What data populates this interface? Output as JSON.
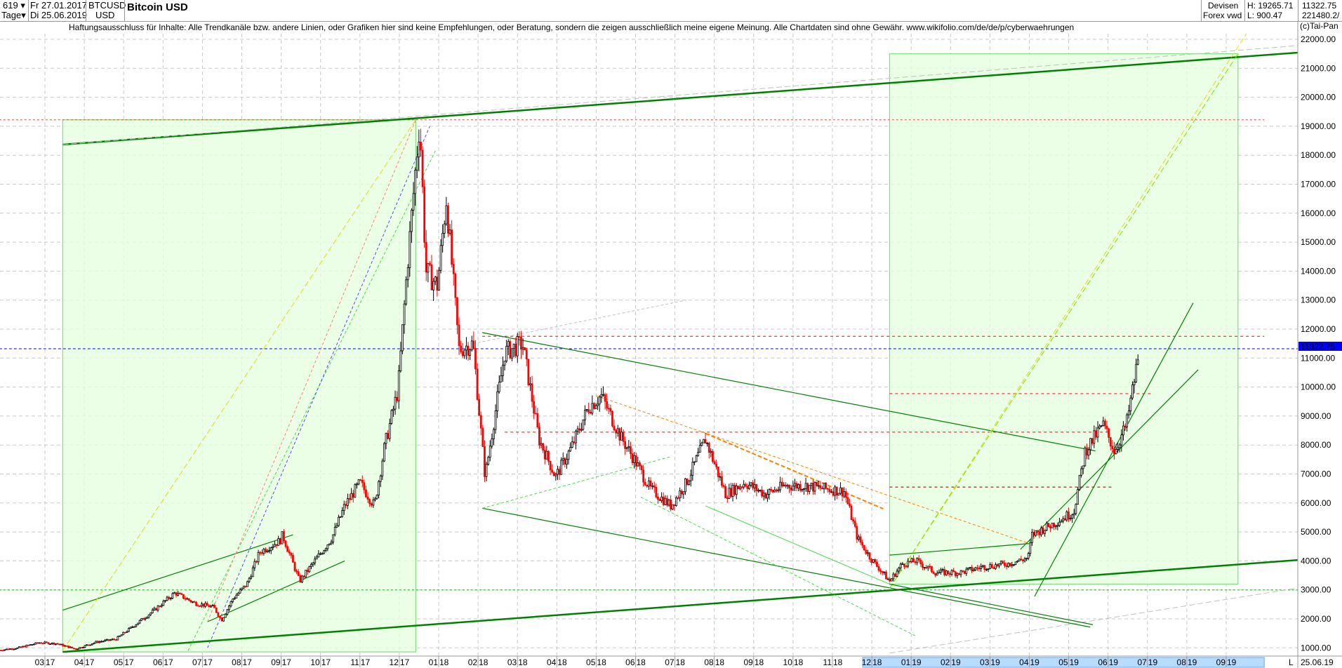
{
  "header": {
    "bars_count": "619",
    "period": "Tage",
    "date_from": "Fr 27.01.2017",
    "date_to": "Di 25.06.2019",
    "symbol": "BTCUSD",
    "currency": "USD",
    "title": "Bitcoin USD",
    "market": "Devisen",
    "market_sub": "Forex vwd",
    "high": "H: 19265.71",
    "low": "L: 900.47",
    "last": "11322.75",
    "volume": "221480.2/"
  },
  "disclaimer": "Haftungsausschluss für Inhalte: Alle Trendkanäle bzw. andere Linien, oder Grafiken hier sind keine Empfehlungen, oder Beratung, sondern die zeigen ausschließlich meine eigene Meinung. Alle Chartdaten sind ohne Gewähr.  www.wikifolio.com/de/de/p/cyberwaehrungen",
  "copyright": "(c)Tai-Pan",
  "footer": {
    "scroll_marker": "L",
    "end_date": "25.06.19"
  },
  "colors": {
    "up": "#000000",
    "down": "#ff0000",
    "current_price": "#0000ff",
    "trend": "#008000",
    "box": "#e6ffe0"
  },
  "chart_data": {
    "type": "candlestick",
    "title": "Bitcoin USD",
    "ylim": [
      700,
      22300
    ],
    "grid": true,
    "y_ticks": [
      "1000.00",
      "2000.00",
      "3000.00",
      "4000.00",
      "5000.00",
      "6000.00",
      "7000.00",
      "8000.00",
      "9000.00",
      "10000.00",
      "11000.00",
      "12000.00",
      "13000.00",
      "14000.00",
      "15000.00",
      "16000.00",
      "17000.00",
      "18000.00",
      "19000.00",
      "20000.00",
      "21000.00",
      "22000.00"
    ],
    "x_ticks": [
      {
        "m": "03",
        "y": "17",
        "date": "2017-03-01"
      },
      {
        "m": "04",
        "y": "17",
        "date": "2017-04-01"
      },
      {
        "m": "05",
        "y": "17",
        "date": "2017-05-01"
      },
      {
        "m": "06",
        "y": "17",
        "date": "2017-06-01"
      },
      {
        "m": "07",
        "y": "17",
        "date": "2017-07-01"
      },
      {
        "m": "08",
        "y": "17",
        "date": "2017-08-01"
      },
      {
        "m": "09",
        "y": "17",
        "date": "2017-09-01"
      },
      {
        "m": "10",
        "y": "17",
        "date": "2017-10-01"
      },
      {
        "m": "11",
        "y": "17",
        "date": "2017-11-01"
      },
      {
        "m": "12",
        "y": "17",
        "date": "2017-12-01"
      },
      {
        "m": "01",
        "y": "18",
        "date": "2018-01-01"
      },
      {
        "m": "02",
        "y": "18",
        "date": "2018-02-01"
      },
      {
        "m": "03",
        "y": "18",
        "date": "2018-03-01"
      },
      {
        "m": "04",
        "y": "18",
        "date": "2018-04-01"
      },
      {
        "m": "05",
        "y": "18",
        "date": "2018-05-01"
      },
      {
        "m": "06",
        "y": "18",
        "date": "2018-06-01"
      },
      {
        "m": "07",
        "y": "18",
        "date": "2018-07-01"
      },
      {
        "m": "08",
        "y": "18",
        "date": "2018-08-01"
      },
      {
        "m": "09",
        "y": "18",
        "date": "2018-09-01"
      },
      {
        "m": "10",
        "y": "18",
        "date": "2018-10-01"
      },
      {
        "m": "11",
        "y": "18",
        "date": "2018-11-01"
      },
      {
        "m": "12",
        "y": "18",
        "date": "2018-12-01"
      },
      {
        "m": "01",
        "y": "19",
        "date": "2019-01-01"
      },
      {
        "m": "02",
        "y": "19",
        "date": "2019-02-01"
      },
      {
        "m": "03",
        "y": "19",
        "date": "2019-03-01"
      },
      {
        "m": "04",
        "y": "19",
        "date": "2019-04-01"
      },
      {
        "m": "05",
        "y": "19",
        "date": "2019-05-01"
      },
      {
        "m": "06",
        "y": "19",
        "date": "2019-06-01"
      },
      {
        "m": "07",
        "y": "19",
        "date": "2019-07-01"
      },
      {
        "m": "08",
        "y": "19",
        "date": "2019-08-01"
      },
      {
        "m": "09",
        "y": "19",
        "date": "2019-09-01"
      }
    ],
    "current_price": 11322.75,
    "closes": [
      [
        "2017-01-27",
        920
      ],
      [
        "2017-02-10",
        1000
      ],
      [
        "2017-02-25",
        1180
      ],
      [
        "2017-03-10",
        1150
      ],
      [
        "2017-03-25",
        960
      ],
      [
        "2017-04-10",
        1200
      ],
      [
        "2017-04-25",
        1300
      ],
      [
        "2017-05-10",
        1800
      ],
      [
        "2017-05-25",
        2300
      ],
      [
        "2017-06-10",
        2900
      ],
      [
        "2017-06-25",
        2550
      ],
      [
        "2017-07-10",
        2400
      ],
      [
        "2017-07-16",
        1950
      ],
      [
        "2017-07-25",
        2700
      ],
      [
        "2017-08-05",
        3200
      ],
      [
        "2017-08-15",
        4300
      ],
      [
        "2017-08-31",
        4700
      ],
      [
        "2017-09-02",
        4900
      ],
      [
        "2017-09-15",
        3300
      ],
      [
        "2017-09-25",
        3900
      ],
      [
        "2017-10-10",
        4800
      ],
      [
        "2017-10-20",
        5900
      ],
      [
        "2017-11-01",
        6700
      ],
      [
        "2017-11-12",
        5900
      ],
      [
        "2017-11-20",
        8000
      ],
      [
        "2017-11-30",
        9900
      ],
      [
        "2017-12-07",
        14000
      ],
      [
        "2017-12-17",
        19200
      ],
      [
        "2017-12-22",
        14000
      ],
      [
        "2017-12-31",
        13500
      ],
      [
        "2018-01-07",
        16500
      ],
      [
        "2018-01-17",
        11300
      ],
      [
        "2018-01-28",
        11500
      ],
      [
        "2018-02-06",
        6900
      ],
      [
        "2018-02-20",
        11200
      ],
      [
        "2018-03-05",
        11500
      ],
      [
        "2018-03-18",
        8200
      ],
      [
        "2018-03-31",
        6900
      ],
      [
        "2018-04-12",
        7900
      ],
      [
        "2018-04-25",
        9300
      ],
      [
        "2018-05-05",
        9700
      ],
      [
        "2018-05-20",
        8300
      ],
      [
        "2018-05-31",
        7500
      ],
      [
        "2018-06-12",
        6500
      ],
      [
        "2018-06-28",
        5900
      ],
      [
        "2018-07-10",
        6700
      ],
      [
        "2018-07-25",
        8200
      ],
      [
        "2018-08-10",
        6300
      ],
      [
        "2018-08-25",
        6700
      ],
      [
        "2018-09-10",
        6300
      ],
      [
        "2018-09-25",
        6600
      ],
      [
        "2018-10-10",
        6600
      ],
      [
        "2018-10-25",
        6500
      ],
      [
        "2018-11-10",
        6400
      ],
      [
        "2018-11-20",
        4800
      ],
      [
        "2018-11-30",
        4100
      ],
      [
        "2018-12-15",
        3300
      ],
      [
        "2018-12-25",
        3900
      ],
      [
        "2019-01-05",
        4000
      ],
      [
        "2019-01-20",
        3600
      ],
      [
        "2019-02-08",
        3600
      ],
      [
        "2019-02-24",
        3800
      ],
      [
        "2019-03-15",
        3900
      ],
      [
        "2019-03-31",
        4100
      ],
      [
        "2019-04-03",
        4900
      ],
      [
        "2019-04-20",
        5300
      ],
      [
        "2019-05-05",
        5700
      ],
      [
        "2019-05-14",
        7800
      ],
      [
        "2019-05-28",
        8700
      ],
      [
        "2019-06-06",
        7800
      ],
      [
        "2019-06-15",
        8700
      ],
      [
        "2019-06-22",
        10500
      ],
      [
        "2019-06-25",
        11322.75
      ]
    ],
    "boxes": [
      {
        "from": "2017-03-15",
        "to": "2017-12-14",
        "low": 860,
        "high": 19223
      },
      {
        "from": "2018-12-15",
        "to": "2019-09-10",
        "low": 3200,
        "high": 21500
      }
    ],
    "lines": [
      {
        "p1": [
          "2017-03-15",
          18368
        ],
        "p2": [
          "2019-11-28",
          21650
        ],
        "color": "#008000",
        "width": 2.5,
        "dash": ""
      },
      {
        "p1": [
          "2017-03-15",
          860
        ],
        "p2": [
          "2019-11-28",
          4140
        ],
        "color": "#008000",
        "width": 2.5,
        "dash": ""
      },
      {
        "p1": [
          "2017-03-15",
          18368
        ],
        "p2": [
          "2019-11-28",
          21900
        ],
        "color": "#c0c0c0",
        "width": 1,
        "dash": "8 4"
      },
      {
        "p1": [
          "2018-12-15",
          820
        ],
        "p2": [
          "2019-11-28",
          3300
        ],
        "color": "#c0c0c0",
        "width": 1,
        "dash": "8 4"
      },
      {
        "p1": [
          "2018-02-04",
          11879
        ],
        "p2": [
          "2019-05-22",
          7796
        ],
        "color": "#008000",
        "width": 1.2,
        "dash": ""
      },
      {
        "p1": [
          "2018-02-04",
          5818
        ],
        "p2": [
          "2019-05-18",
          1715
        ],
        "color": "#008000",
        "width": 1.2,
        "dash": ""
      },
      {
        "p1": [
          "2019-04-05",
          2775
        ],
        "p2": [
          "2019-08-06",
          12904
        ],
        "color": "#008000",
        "width": 1.2,
        "dash": ""
      },
      {
        "p1": [
          "2019-03-25",
          4400
        ],
        "p2": [
          "2019-08-10",
          10600
        ],
        "color": "#008000",
        "width": 1.2,
        "dash": ""
      },
      {
        "p1": [
          "2018-12-15",
          4200
        ],
        "p2": [
          "2019-04-01",
          4600
        ],
        "color": "#008000",
        "width": 1.2,
        "dash": ""
      },
      {
        "p1": [
          "2017-03-15",
          2300
        ],
        "p2": [
          "2017-09-10",
          4900
        ],
        "color": "#008000",
        "width": 1.2,
        "dash": ""
      },
      {
        "p1": [
          "2017-07-05",
          1900
        ],
        "p2": [
          "2017-10-20",
          4000
        ],
        "color": "#008000",
        "width": 1.2,
        "dash": ""
      },
      {
        "p1": [
          "2017-03-15",
          900
        ],
        "p2": [
          "2017-12-14",
          19223
        ],
        "color": "#e0e000",
        "width": 1,
        "dash": "8 4"
      },
      {
        "p1": [
          "2018-12-15",
          3050
        ],
        "p2": [
          "2019-09-25",
          22800
        ],
        "color": "#e0e000",
        "width": 1,
        "dash": "8 4"
      },
      {
        "p1": [
          "2018-12-15",
          3050
        ],
        "p2": [
          "2019-09-10",
          21500
        ],
        "color": "#80e000",
        "width": 1,
        "dash": "8 4"
      },
      {
        "p1": [
          "2017-06-20",
          900
        ],
        "p2": [
          "2017-12-30",
          18200
        ],
        "color": "#40e040",
        "width": 1,
        "dash": "4 3"
      },
      {
        "p1": [
          "2017-07-05",
          1000
        ],
        "p2": [
          "2017-12-25",
          19000
        ],
        "color": "#6040ff",
        "width": 1,
        "dash": "4 3"
      },
      {
        "p1": [
          "2017-07-05",
          1900
        ],
        "p2": [
          "2017-12-14",
          19223
        ],
        "color": "#ff8080",
        "width": 1,
        "dash": "4 3"
      },
      {
        "p1": [
          "2018-05-01",
          9700
        ],
        "p2": [
          "2019-04-01",
          4600
        ],
        "color": "#ff8000",
        "width": 1,
        "dash": "4 3"
      },
      {
        "p1": [
          "2018-07-25",
          8400
        ],
        "p2": [
          "2018-12-10",
          5800
        ],
        "color": "#ff8000",
        "width": 2,
        "dash": "6 3"
      },
      {
        "p1": [
          "2018-06-05",
          6200
        ],
        "p2": [
          "2019-01-05",
          1400
        ],
        "color": "#40e040",
        "width": 1,
        "dash": "4 3"
      },
      {
        "p1": [
          "2018-07-25",
          5900
        ],
        "p2": [
          "2018-12-15",
          3200
        ],
        "color": "#40e040",
        "width": 1,
        "dash": ""
      },
      {
        "p1": [
          "2018-12-15",
          3200
        ],
        "p2": [
          "2019-05-20",
          1800
        ],
        "color": "#008000",
        "width": 1.2,
        "dash": ""
      },
      {
        "p1": [
          "2018-02-04",
          5818
        ],
        "p2": [
          "2018-06-28",
          7600
        ],
        "color": "#40e040",
        "width": 1,
        "dash": "4 3"
      },
      {
        "p1": [
          "2018-01-28",
          11500
        ],
        "p2": [
          "2018-07-10",
          13000
        ],
        "color": "#c0c0c0",
        "width": 1,
        "dash": "4 3"
      }
    ],
    "hlines": [
      {
        "price": 19223,
        "from": "2017-01-27",
        "to": "2019-09-30",
        "color": "#ff4040",
        "dash": "3 3"
      },
      {
        "price": 11753,
        "from": "2018-02-04",
        "to": "2019-09-30",
        "color": "#ff0000",
        "dash": "4 4"
      },
      {
        "price": 9773,
        "from": "2018-12-15",
        "to": "2019-07-05",
        "color": "#ff0000",
        "dash": "4 4"
      },
      {
        "price": 8445,
        "from": "2018-02-20",
        "to": "2019-06-01",
        "color": "#ff0000",
        "dash": "4 4"
      },
      {
        "price": 6550,
        "from": "2018-12-15",
        "to": "2019-06-05",
        "color": "#800000",
        "dash": "4 4"
      },
      {
        "price": 3000,
        "from": "2017-01-27",
        "to": "2019-11-28",
        "color": "#00c000",
        "dash": "3 3"
      },
      {
        "price": 11322.75,
        "from": "2017-01-27",
        "to": "2019-11-28",
        "color": "#0000ff",
        "dash": "4 3"
      }
    ]
  }
}
